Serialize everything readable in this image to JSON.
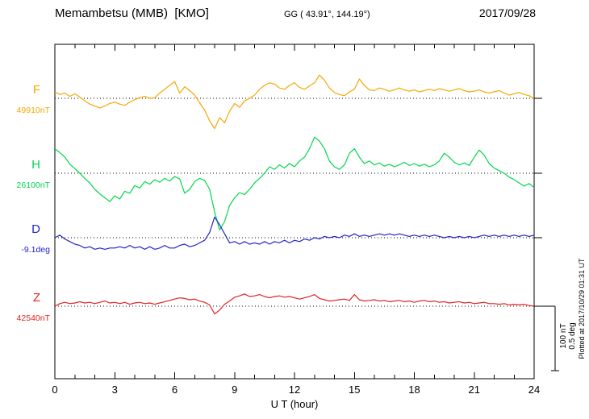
{
  "header": {
    "station": "Memambetsu (MMB)  [KMO]",
    "coords": "GG ( 43.91°, 144.19°)",
    "date": "2017/09/28"
  },
  "footer_note": "Plotted at 2017/10/29 01:31 UT",
  "scale_bar": {
    "labels": [
      "100 nT",
      "0.5 deg"
    ]
  },
  "chart_data": {
    "type": "line",
    "title": "Memambetsu (MMB) [KMO] magnetogram 2017/09/28",
    "xlabel": "U T (hour)",
    "ylabel": "",
    "x_range": [
      0,
      24
    ],
    "x_ticks": [
      0,
      3,
      6,
      9,
      12,
      15,
      18,
      21,
      24
    ],
    "x_minor_tick_step": 1,
    "grid": "dotted horizontal baseline per component",
    "legend_position": "left labels",
    "sample_interval_hours": 0.25,
    "scale": {
      "nT_per_division": 100,
      "deg_per_division": 0.5
    },
    "series": [
      {
        "name": "F",
        "unit": "nT",
        "baseline_value": 49910,
        "baseline_label": "49910nT",
        "color": "#f5a800",
        "offsets": [
          10,
          6,
          8,
          3,
          7,
          2,
          -4,
          -9,
          -12,
          -15,
          -12,
          -8,
          -6,
          -9,
          -11,
          -6,
          -2,
          1,
          3,
          0,
          1,
          8,
          14,
          20,
          26,
          8,
          18,
          12,
          5,
          -7,
          -18,
          -35,
          -47,
          -30,
          -38,
          -20,
          -8,
          -14,
          -4,
          0,
          5,
          14,
          20,
          24,
          22,
          16,
          14,
          20,
          24,
          17,
          14,
          19,
          24,
          36,
          28,
          16,
          9,
          6,
          4,
          10,
          14,
          30,
          20,
          13,
          12,
          16,
          14,
          11,
          13,
          16,
          13,
          11,
          13,
          10,
          12,
          14,
          12,
          15,
          13,
          11,
          13,
          15,
          12,
          10,
          11,
          13,
          10,
          8,
          10,
          12,
          8,
          5,
          7,
          9,
          6,
          4,
          0
        ]
      },
      {
        "name": "H",
        "unit": "nT",
        "baseline_value": 26100,
        "baseline_label": "26100nT",
        "color": "#00d84b",
        "offsets": [
          38,
          32,
          25,
          14,
          7,
          0,
          -8,
          -15,
          -25,
          -32,
          -38,
          -44,
          -35,
          -40,
          -28,
          -31,
          -19,
          -23,
          -13,
          -17,
          -10,
          -14,
          -8,
          -12,
          -5,
          -9,
          -31,
          -25,
          -13,
          -8,
          -11,
          -25,
          -60,
          -88,
          -75,
          -50,
          -38,
          -30,
          -33,
          -25,
          -15,
          -8,
          0,
          10,
          6,
          13,
          8,
          15,
          10,
          19,
          25,
          38,
          56,
          50,
          38,
          19,
          10,
          6,
          13,
          31,
          38,
          25,
          15,
          19,
          13,
          16,
          11,
          14,
          10,
          13,
          17,
          12,
          15,
          11,
          14,
          10,
          13,
          19,
          31,
          25,
          17,
          13,
          16,
          12,
          25,
          36,
          28,
          15,
          8,
          4,
          0,
          -6,
          -10,
          -15,
          -20,
          -16,
          -22
        ]
      },
      {
        "name": "D",
        "unit": "deg",
        "baseline_value": -9.1,
        "baseline_label": "-9.1deg",
        "color": "#2323cc",
        "offsets": [
          0,
          0.02,
          -0.01,
          -0.03,
          -0.05,
          -0.06,
          -0.08,
          -0.07,
          -0.09,
          -0.08,
          -0.09,
          -0.08,
          -0.08,
          -0.07,
          -0.08,
          -0.06,
          -0.08,
          -0.07,
          -0.09,
          -0.07,
          -0.09,
          -0.08,
          -0.06,
          -0.08,
          -0.08,
          -0.06,
          -0.05,
          -0.07,
          -0.06,
          -0.04,
          -0.02,
          0.04,
          0.16,
          0.1,
          0.03,
          -0.04,
          -0.03,
          -0.05,
          -0.03,
          -0.05,
          -0.04,
          -0.05,
          -0.03,
          -0.05,
          -0.03,
          -0.04,
          -0.02,
          -0.04,
          -0.02,
          -0.03,
          -0.01,
          -0.02,
          0,
          -0.01,
          0.01,
          0,
          0.01,
          0,
          0.02,
          0.01,
          0.03,
          0.01,
          0.02,
          0.01,
          0.02,
          0.03,
          0.02,
          0.03,
          0.02,
          0.03,
          0.02,
          0.01,
          0.02,
          0.01,
          0.02,
          0.01,
          0.02,
          0.01,
          0,
          0.01,
          0,
          0.01,
          0,
          0.01,
          0,
          0.01,
          0.02,
          0.01,
          0.02,
          0.01,
          0.02,
          0.01,
          0.02,
          0.01,
          0.02,
          0.01,
          0.02
        ]
      },
      {
        "name": "Z",
        "unit": "nT",
        "baseline_value": 42540,
        "baseline_label": "42540nT",
        "color": "#e02222",
        "offsets": [
          0,
          4,
          6,
          4,
          5,
          7,
          5,
          6,
          4,
          6,
          8,
          5,
          6,
          4,
          6,
          3,
          5,
          6,
          4,
          5,
          3,
          5,
          7,
          9,
          11,
          13,
          12,
          10,
          11,
          8,
          6,
          2,
          -12,
          -6,
          3,
          8,
          14,
          16,
          19,
          15,
          16,
          18,
          15,
          13,
          15,
          16,
          14,
          15,
          13,
          11,
          13,
          15,
          18,
          12,
          10,
          8,
          9,
          10,
          11,
          9,
          18,
          10,
          8,
          9,
          10,
          8,
          9,
          7,
          8,
          9,
          7,
          8,
          6,
          8,
          9,
          7,
          8,
          6,
          7,
          5,
          6,
          7,
          5,
          6,
          4,
          5,
          6,
          4,
          4,
          3,
          4,
          2,
          3,
          2,
          3,
          1,
          0
        ]
      }
    ]
  }
}
